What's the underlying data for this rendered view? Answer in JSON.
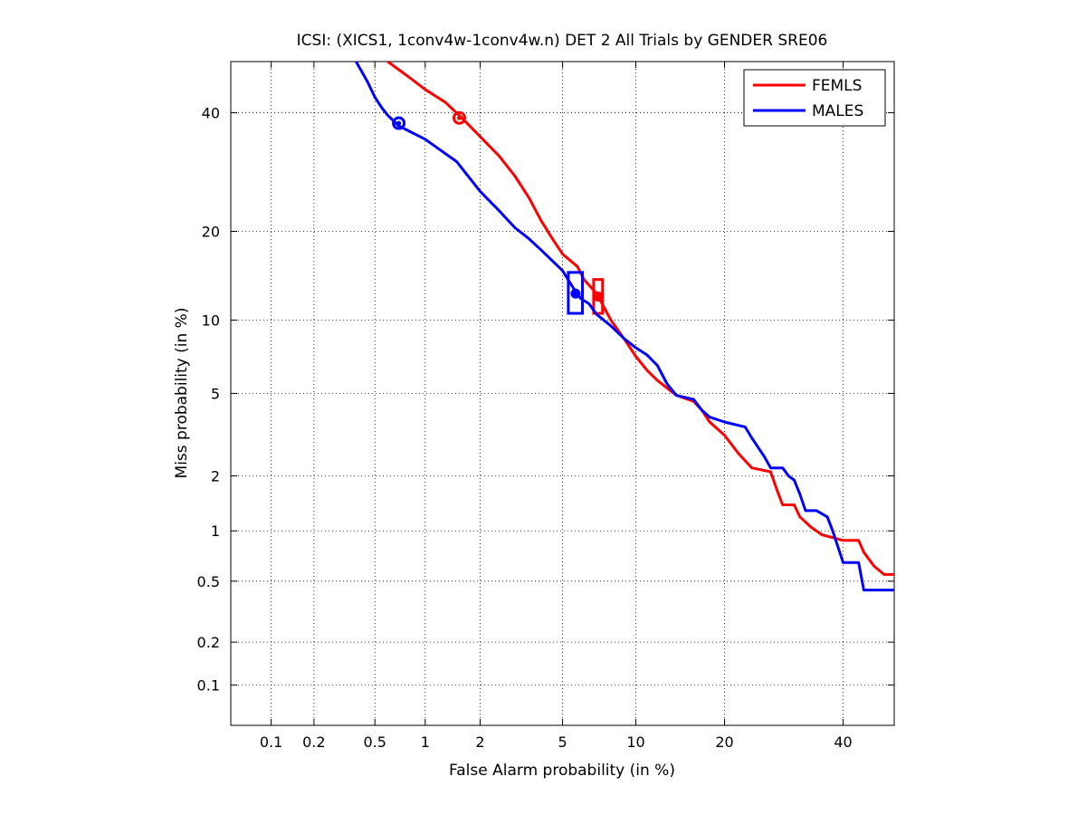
{
  "chart_data": {
    "type": "line",
    "title": "ICSI: (XICS1, 1conv4w-1conv4w.n) DET 2 All Trials by GENDER SRE06",
    "xlabel": "False Alarm probability (in %)",
    "ylabel": "Miss probability (in %)",
    "x_scale": "normal-deviate (probit)",
    "y_scale": "normal-deviate (probit)",
    "xlim": [
      0.05,
      50
    ],
    "ylim": [
      0.05,
      50
    ],
    "x_ticks": [
      0.1,
      0.2,
      0.5,
      1,
      2,
      5,
      10,
      20,
      40
    ],
    "y_ticks": [
      0.1,
      0.2,
      0.5,
      1,
      2,
      5,
      10,
      20,
      40
    ],
    "x_tick_labels": [
      "0.1",
      "0.2",
      "0.5",
      "1",
      "2",
      "5",
      "10",
      "20",
      "40"
    ],
    "y_tick_labels": [
      "0.1",
      "0.2",
      "0.5",
      "1",
      "2",
      "5",
      "10",
      "20",
      "40"
    ],
    "grid": true,
    "legend_position": "top-right",
    "series": [
      {
        "name": "FEMLS",
        "color": "#ff0000",
        "points": [
          [
            0.6,
            50
          ],
          [
            0.8,
            47
          ],
          [
            1.0,
            44.5
          ],
          [
            1.3,
            42
          ],
          [
            1.6,
            39
          ],
          [
            2.0,
            35.5
          ],
          [
            2.5,
            32
          ],
          [
            3.0,
            28.5
          ],
          [
            3.5,
            25
          ],
          [
            4.0,
            21.5
          ],
          [
            4.5,
            19
          ],
          [
            5.0,
            17
          ],
          [
            5.8,
            15.5
          ],
          [
            6.2,
            14
          ],
          [
            7.0,
            12.5
          ],
          [
            8.0,
            10
          ],
          [
            9.0,
            8.5
          ],
          [
            10.0,
            7.2
          ],
          [
            11.0,
            6.3
          ],
          [
            12.0,
            5.7
          ],
          [
            14.0,
            4.9
          ],
          [
            16.0,
            4.6
          ],
          [
            17.0,
            4.2
          ],
          [
            18.0,
            3.7
          ],
          [
            20.0,
            3.2
          ],
          [
            22.0,
            2.6
          ],
          [
            24.0,
            2.2
          ],
          [
            27.0,
            2.1
          ],
          [
            28.0,
            1.7
          ],
          [
            29.0,
            1.4
          ],
          [
            31.0,
            1.4
          ],
          [
            32.0,
            1.2
          ],
          [
            34.0,
            1.05
          ],
          [
            36.0,
            0.95
          ],
          [
            40.0,
            0.88
          ],
          [
            43.0,
            0.88
          ],
          [
            44.0,
            0.75
          ],
          [
            46.0,
            0.62
          ],
          [
            48.0,
            0.55
          ],
          [
            50.0,
            0.55
          ]
        ],
        "actual_decision": {
          "x": 7.1,
          "y": 12.2,
          "x_range": [
            6.8,
            7.4
          ],
          "y_range": [
            10.6,
            14.0
          ]
        },
        "min_dcf_point": {
          "x": 1.55,
          "y": 39
        }
      },
      {
        "name": "MALES",
        "color": "#0000ff",
        "points": [
          [
            0.38,
            50
          ],
          [
            0.45,
            46
          ],
          [
            0.5,
            43
          ],
          [
            0.55,
            41
          ],
          [
            0.6,
            39.5
          ],
          [
            0.7,
            37.5
          ],
          [
            1.0,
            35
          ],
          [
            1.5,
            31
          ],
          [
            2.0,
            26
          ],
          [
            2.5,
            23
          ],
          [
            3.0,
            20.5
          ],
          [
            3.5,
            19
          ],
          [
            4.0,
            17.5
          ],
          [
            5.0,
            15
          ],
          [
            5.6,
            13
          ],
          [
            6.0,
            12
          ],
          [
            6.5,
            11.5
          ],
          [
            7.0,
            10.5
          ],
          [
            8.0,
            9.5
          ],
          [
            9.0,
            8.5
          ],
          [
            10.0,
            7.8
          ],
          [
            11.0,
            7.3
          ],
          [
            12.0,
            6.6
          ],
          [
            13.0,
            5.5
          ],
          [
            14.0,
            4.9
          ],
          [
            16.0,
            4.7
          ],
          [
            17.0,
            4.2
          ],
          [
            18.0,
            3.9
          ],
          [
            20.0,
            3.7
          ],
          [
            23.0,
            3.5
          ],
          [
            24.0,
            3.1
          ],
          [
            26.0,
            2.5
          ],
          [
            27.0,
            2.2
          ],
          [
            29.0,
            2.2
          ],
          [
            30.0,
            2.0
          ],
          [
            31.0,
            1.9
          ],
          [
            32.0,
            1.6
          ],
          [
            33.0,
            1.3
          ],
          [
            35.0,
            1.3
          ],
          [
            37.0,
            1.2
          ],
          [
            38.0,
            1.0
          ],
          [
            40.0,
            0.65
          ],
          [
            43.0,
            0.65
          ],
          [
            44.0,
            0.44
          ],
          [
            50.0,
            0.44
          ]
        ],
        "actual_decision": {
          "x": 5.7,
          "y": 12.5,
          "x_range": [
            5.3,
            6.1
          ],
          "y_range": [
            10.6,
            14.8
          ]
        },
        "min_dcf_point": {
          "x": 0.7,
          "y": 38
        }
      }
    ]
  }
}
